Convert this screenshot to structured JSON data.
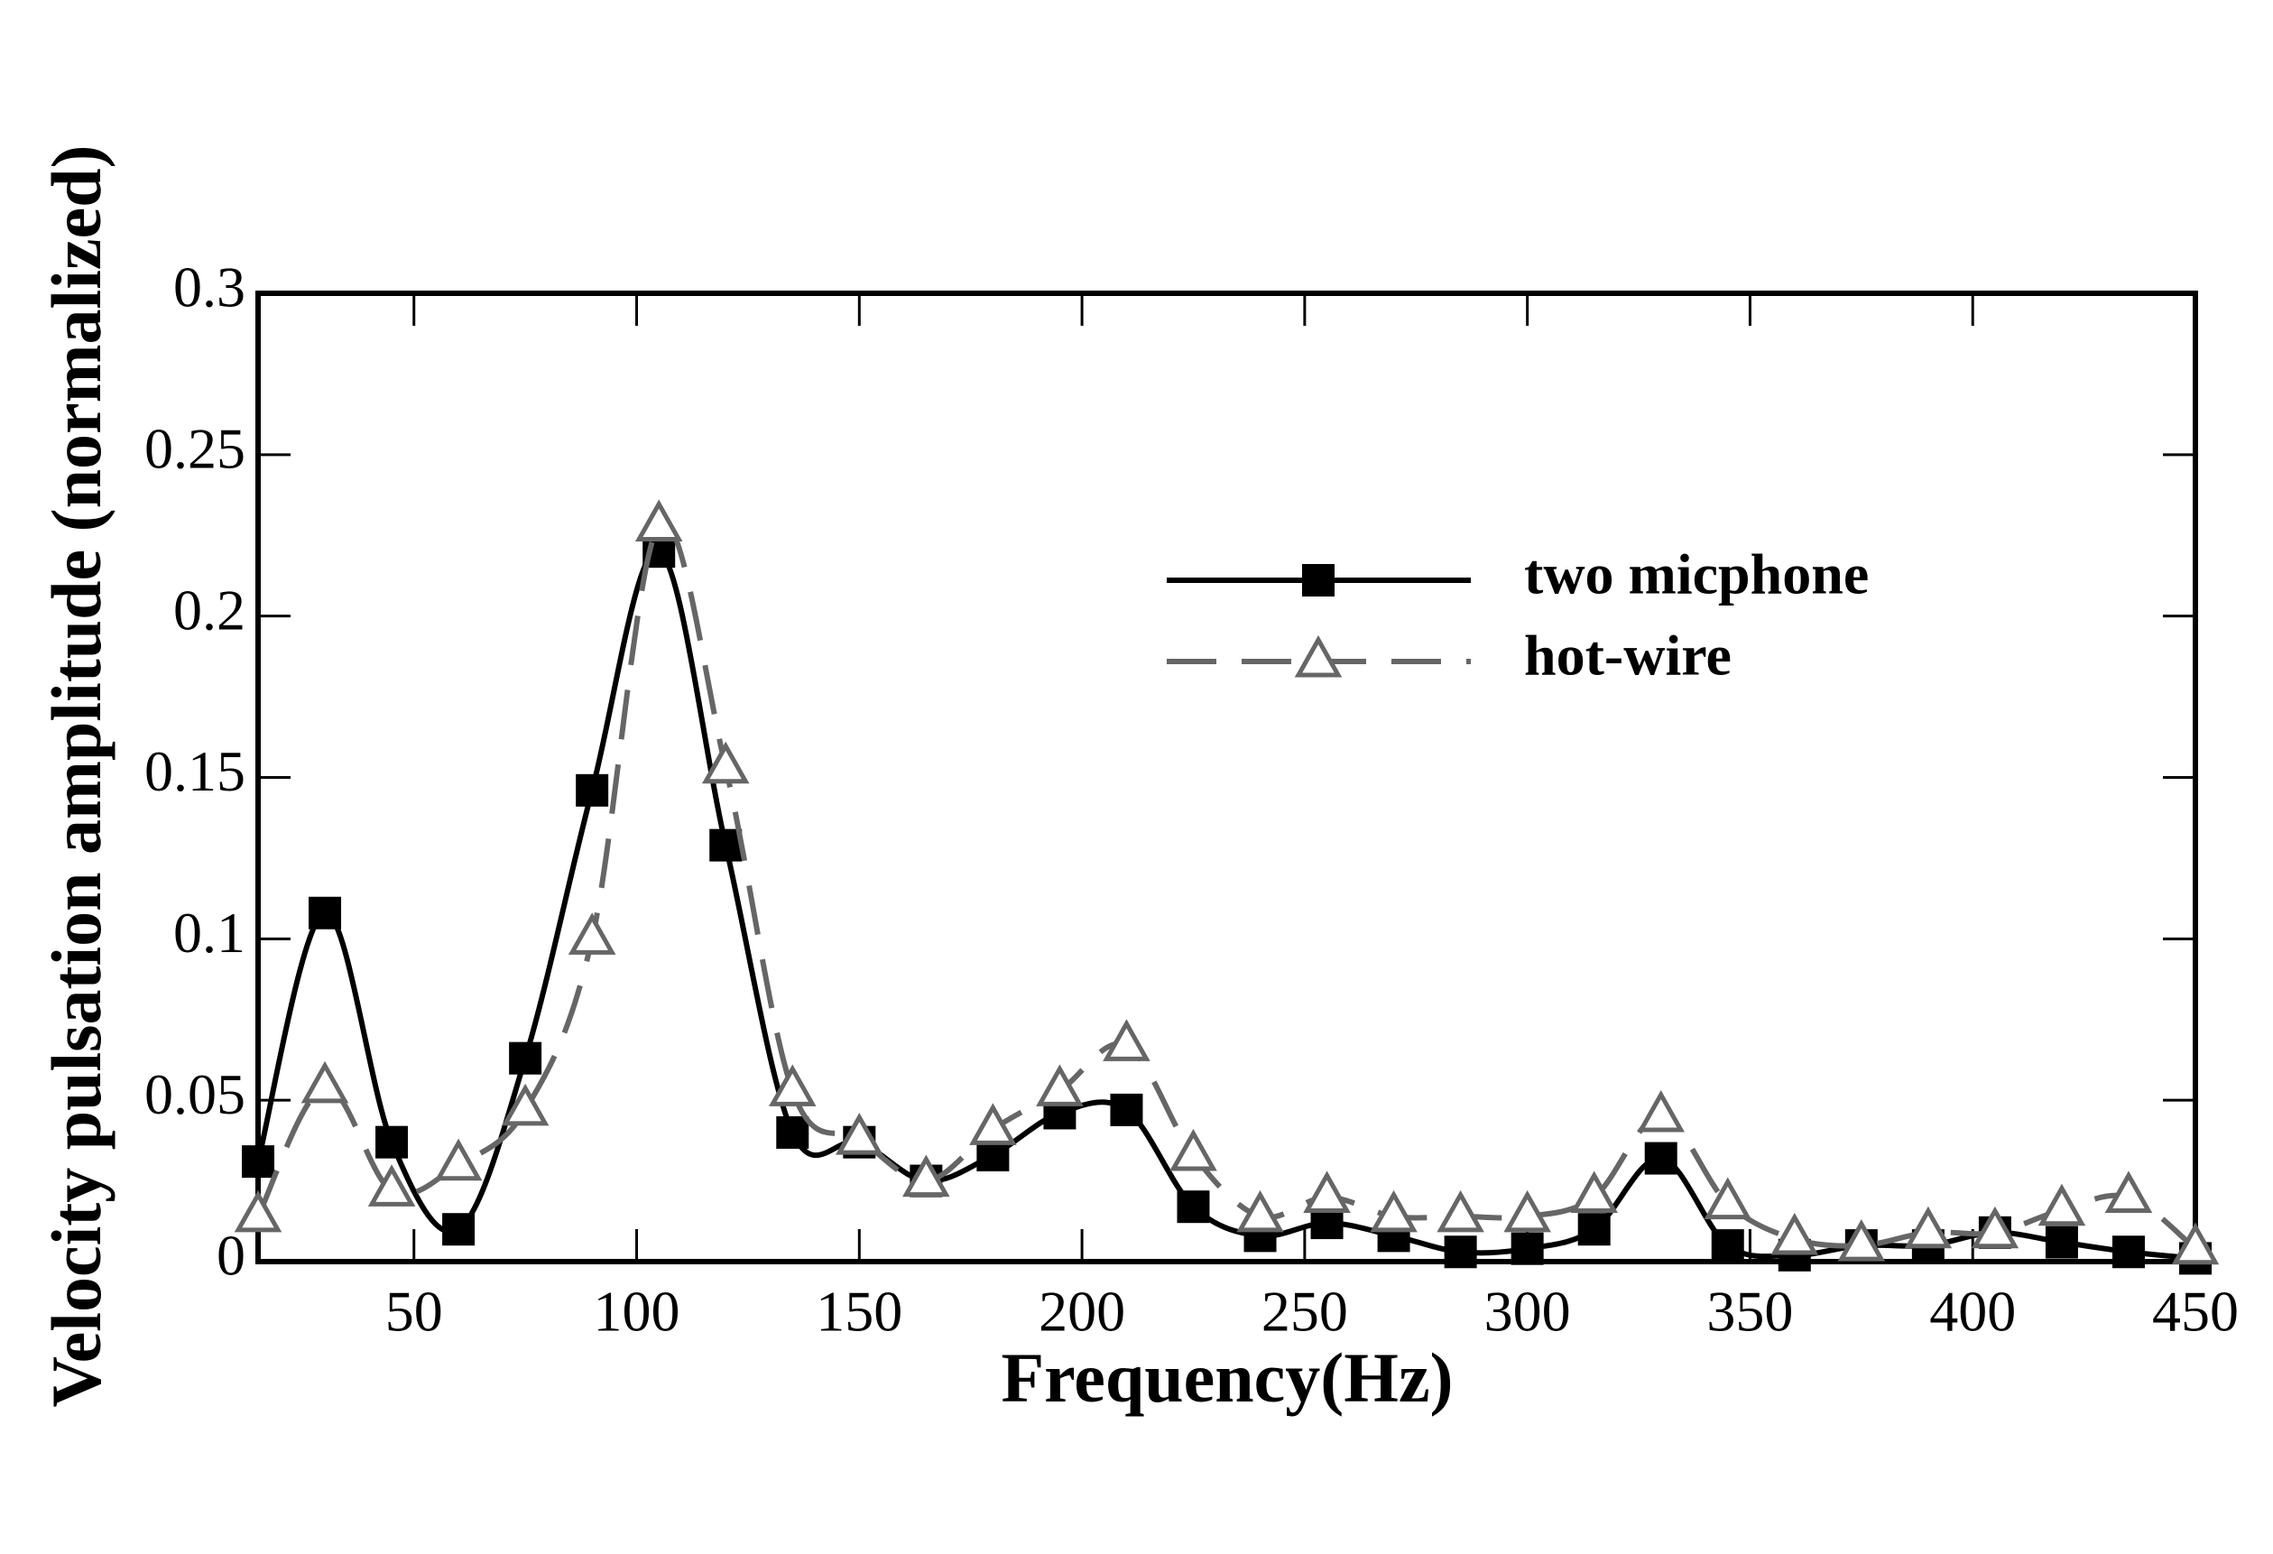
{
  "chart_data": {
    "type": "line",
    "xlabel": "Frequency(Hz)",
    "ylabel": "Velocity pulsation amplitude (normalized)",
    "x": [
      15,
      30,
      45,
      60,
      75,
      90,
      105,
      120,
      135,
      150,
      165,
      180,
      195,
      210,
      225,
      240,
      255,
      270,
      285,
      300,
      315,
      330,
      345,
      360,
      375,
      390,
      405,
      420,
      435,
      450
    ],
    "series": [
      {
        "name": "two micphone",
        "color": "#000000",
        "line_style": "solid",
        "marker": "square",
        "values": [
          0.031,
          0.108,
          0.037,
          0.01,
          0.063,
          0.146,
          0.22,
          0.129,
          0.04,
          0.037,
          0.025,
          0.033,
          0.046,
          0.047,
          0.017,
          0.008,
          0.012,
          0.008,
          0.003,
          0.004,
          0.01,
          0.032,
          0.005,
          0.002,
          0.005,
          0.005,
          0.009,
          0.006,
          0.003,
          0.001
        ]
      },
      {
        "name": "hot-wire",
        "color": "#666666",
        "line_style": "dashed",
        "marker": "triangle",
        "values": [
          0.014,
          0.054,
          0.022,
          0.03,
          0.047,
          0.1,
          0.228,
          0.153,
          0.053,
          0.038,
          0.025,
          0.041,
          0.053,
          0.067,
          0.033,
          0.014,
          0.02,
          0.014,
          0.014,
          0.014,
          0.02,
          0.045,
          0.018,
          0.007,
          0.005,
          0.009,
          0.009,
          0.016,
          0.02,
          0.004
        ]
      }
    ],
    "xlim": [
      15,
      450
    ],
    "xticks": [
      50,
      100,
      150,
      200,
      250,
      300,
      350,
      400,
      450
    ],
    "ylim": [
      0,
      0.3
    ],
    "yticks": [
      0,
      0.05,
      0.1,
      0.15,
      0.2,
      0.25,
      0.3
    ],
    "legend": "upper right"
  }
}
